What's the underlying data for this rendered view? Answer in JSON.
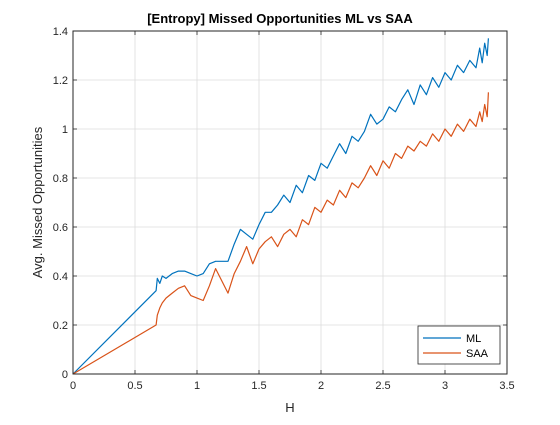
{
  "chart_data": {
    "type": "line",
    "title": "[Entropy] Missed Opportunities ML vs SAA",
    "xlabel": "H",
    "ylabel": "Avg. Missed Opportunities",
    "xlim": [
      0,
      3.5
    ],
    "ylim": [
      0,
      1.4
    ],
    "xticks": [
      0,
      0.5,
      1,
      1.5,
      2,
      2.5,
      3,
      3.5
    ],
    "xtick_labels": [
      "0",
      "0.5",
      "1",
      "1.5",
      "2",
      "2.5",
      "3",
      "3.5"
    ],
    "yticks": [
      0,
      0.2,
      0.4,
      0.6,
      0.8,
      1.0,
      1.2,
      1.4
    ],
    "ytick_labels": [
      "0",
      "0.2",
      "0.4",
      "0.6",
      "0.8",
      "1",
      "1.2",
      "1.4"
    ],
    "grid": true,
    "legend_position": "bottom-right",
    "series": [
      {
        "name": "ML",
        "color": "#0072BD",
        "x": [
          0,
          0.67,
          0.68,
          0.7,
          0.72,
          0.75,
          0.8,
          0.85,
          0.9,
          0.95,
          1.0,
          1.05,
          1.1,
          1.15,
          1.2,
          1.25,
          1.3,
          1.35,
          1.4,
          1.45,
          1.5,
          1.55,
          1.6,
          1.65,
          1.7,
          1.75,
          1.8,
          1.85,
          1.9,
          1.95,
          2.0,
          2.05,
          2.1,
          2.15,
          2.2,
          2.25,
          2.3,
          2.35,
          2.4,
          2.45,
          2.5,
          2.55,
          2.6,
          2.65,
          2.7,
          2.75,
          2.8,
          2.85,
          2.9,
          2.95,
          3.0,
          3.05,
          3.1,
          3.15,
          3.2,
          3.25,
          3.28,
          3.3,
          3.32,
          3.34,
          3.35
        ],
        "y": [
          0,
          0.34,
          0.39,
          0.37,
          0.4,
          0.39,
          0.41,
          0.42,
          0.42,
          0.41,
          0.4,
          0.41,
          0.45,
          0.46,
          0.46,
          0.46,
          0.53,
          0.59,
          0.57,
          0.55,
          0.61,
          0.66,
          0.66,
          0.69,
          0.73,
          0.7,
          0.77,
          0.74,
          0.81,
          0.79,
          0.86,
          0.84,
          0.89,
          0.94,
          0.9,
          0.97,
          0.95,
          0.99,
          1.06,
          1.02,
          1.04,
          1.09,
          1.07,
          1.12,
          1.16,
          1.1,
          1.18,
          1.14,
          1.21,
          1.17,
          1.23,
          1.2,
          1.26,
          1.23,
          1.28,
          1.25,
          1.33,
          1.27,
          1.35,
          1.3,
          1.37
        ]
      },
      {
        "name": "SAA",
        "color": "#D95319",
        "x": [
          0,
          0.67,
          0.68,
          0.7,
          0.72,
          0.75,
          0.8,
          0.85,
          0.9,
          0.95,
          1.0,
          1.05,
          1.1,
          1.15,
          1.2,
          1.25,
          1.3,
          1.35,
          1.4,
          1.45,
          1.5,
          1.55,
          1.6,
          1.65,
          1.7,
          1.75,
          1.8,
          1.85,
          1.9,
          1.95,
          2.0,
          2.05,
          2.1,
          2.15,
          2.2,
          2.25,
          2.3,
          2.35,
          2.4,
          2.45,
          2.5,
          2.55,
          2.6,
          2.65,
          2.7,
          2.75,
          2.8,
          2.85,
          2.9,
          2.95,
          3.0,
          3.05,
          3.1,
          3.15,
          3.2,
          3.25,
          3.28,
          3.3,
          3.32,
          3.34,
          3.35
        ],
        "y": [
          0,
          0.2,
          0.24,
          0.27,
          0.29,
          0.31,
          0.33,
          0.35,
          0.36,
          0.32,
          0.31,
          0.3,
          0.36,
          0.43,
          0.38,
          0.33,
          0.41,
          0.46,
          0.52,
          0.45,
          0.51,
          0.54,
          0.56,
          0.52,
          0.57,
          0.59,
          0.56,
          0.63,
          0.61,
          0.68,
          0.66,
          0.71,
          0.69,
          0.75,
          0.72,
          0.78,
          0.76,
          0.8,
          0.85,
          0.81,
          0.87,
          0.84,
          0.9,
          0.88,
          0.93,
          0.91,
          0.95,
          0.93,
          0.98,
          0.95,
          1.0,
          0.97,
          1.02,
          0.99,
          1.04,
          1.01,
          1.07,
          1.03,
          1.1,
          1.05,
          1.15
        ]
      }
    ]
  }
}
